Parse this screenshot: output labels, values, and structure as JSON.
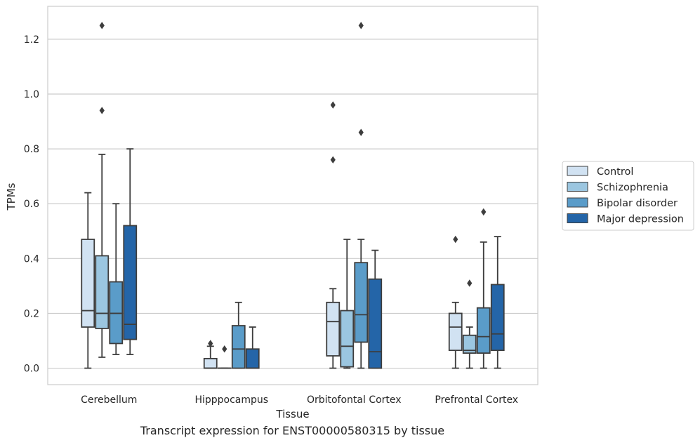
{
  "chart_data": {
    "type": "box",
    "xlabel": "Tissue",
    "ylabel": "TPMs",
    "caption": "Transcript expression for ENST00000580315 by tissue",
    "ylim": [
      -0.06,
      1.32
    ],
    "yticks": [
      0.0,
      0.2,
      0.4,
      0.6,
      0.8,
      1.0,
      1.2
    ],
    "ytick_labels": [
      "0.0",
      "0.2",
      "0.4",
      "0.6",
      "0.8",
      "1.0",
      "1.2"
    ],
    "grid": "horizontal",
    "legend_position": "right",
    "categories": [
      "Cerebellum",
      "Hipppocampus",
      "Orbitofontal Cortex",
      "Prefrontal Cortex"
    ],
    "series": [
      {
        "name": "Control",
        "color": "#d1e2f2",
        "boxes": [
          {
            "whislo": 0.0,
            "q1": 0.15,
            "med": 0.21,
            "q3": 0.47,
            "whishi": 0.64,
            "fliers": []
          },
          {
            "whislo": 0.0,
            "q1": 0.0,
            "med": 0.0,
            "q3": 0.035,
            "whishi": 0.08,
            "fliers": [
              0.09
            ]
          },
          {
            "whislo": 0.0,
            "q1": 0.045,
            "med": 0.17,
            "q3": 0.24,
            "whishi": 0.29,
            "fliers": [
              0.76,
              0.96
            ]
          },
          {
            "whislo": 0.0,
            "q1": 0.065,
            "med": 0.15,
            "q3": 0.2,
            "whishi": 0.24,
            "fliers": [
              0.47
            ]
          }
        ]
      },
      {
        "name": "Schizophrenia",
        "color": "#9bc6e0",
        "boxes": [
          {
            "whislo": 0.04,
            "q1": 0.145,
            "med": 0.2,
            "q3": 0.41,
            "whishi": 0.78,
            "fliers": [
              0.94,
              1.25
            ]
          },
          {
            "whislo": 0.0,
            "q1": 0.0,
            "med": 0.0,
            "q3": 0.0,
            "whishi": 0.0,
            "fliers": [
              0.07
            ]
          },
          {
            "whislo": 0.0,
            "q1": 0.005,
            "med": 0.08,
            "q3": 0.21,
            "whishi": 0.47,
            "fliers": []
          },
          {
            "whislo": 0.0,
            "q1": 0.055,
            "med": 0.065,
            "q3": 0.12,
            "whishi": 0.15,
            "fliers": [
              0.31
            ]
          }
        ]
      },
      {
        "name": "Bipolar disorder",
        "color": "#5a9cc9",
        "boxes": [
          {
            "whislo": 0.05,
            "q1": 0.09,
            "med": 0.2,
            "q3": 0.315,
            "whishi": 0.6,
            "fliers": []
          },
          {
            "whislo": 0.0,
            "q1": 0.0,
            "med": 0.07,
            "q3": 0.155,
            "whishi": 0.24,
            "fliers": []
          },
          {
            "whislo": 0.0,
            "q1": 0.095,
            "med": 0.195,
            "q3": 0.385,
            "whishi": 0.47,
            "fliers": [
              0.86,
              1.25
            ]
          },
          {
            "whislo": 0.0,
            "q1": 0.055,
            "med": 0.115,
            "q3": 0.22,
            "whishi": 0.46,
            "fliers": [
              0.57
            ]
          }
        ]
      },
      {
        "name": "Major depression",
        "color": "#2465a8",
        "boxes": [
          {
            "whislo": 0.05,
            "q1": 0.105,
            "med": 0.16,
            "q3": 0.52,
            "whishi": 0.8,
            "fliers": []
          },
          {
            "whislo": 0.0,
            "q1": 0.0,
            "med": 0.0,
            "q3": 0.07,
            "whishi": 0.15,
            "fliers": []
          },
          {
            "whislo": 0.0,
            "q1": 0.0,
            "med": 0.06,
            "q3": 0.325,
            "whishi": 0.43,
            "fliers": []
          },
          {
            "whislo": 0.0,
            "q1": 0.065,
            "med": 0.125,
            "q3": 0.305,
            "whishi": 0.48,
            "fliers": []
          }
        ]
      }
    ]
  }
}
